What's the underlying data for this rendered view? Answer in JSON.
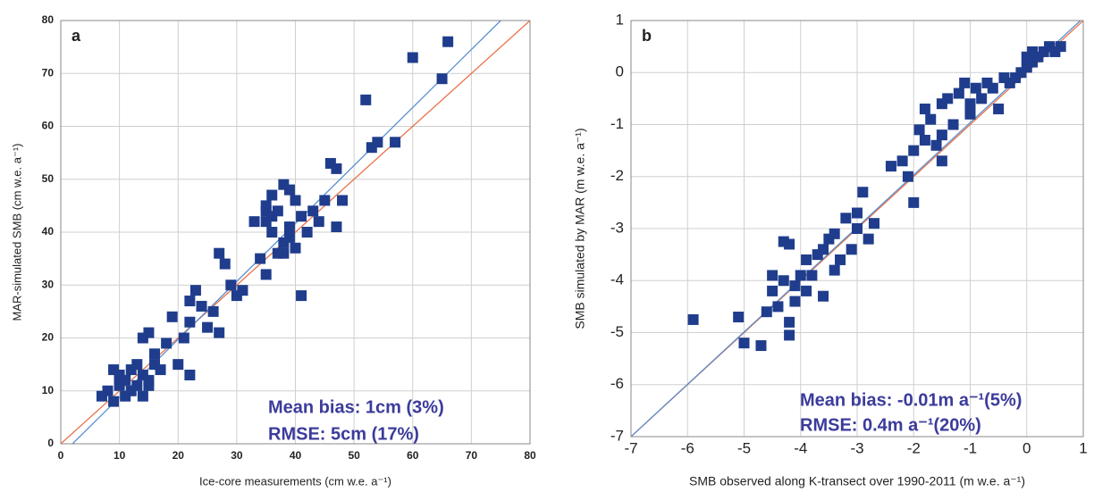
{
  "chart_data": [
    {
      "type": "scatter",
      "panel_label": "a",
      "x_label": "Ice-core measurements (cm w.e. a⁻¹)",
      "y_label": "MAR-simulated SMB (cm w.e. a⁻¹)",
      "annotations": [
        "Mean bias: 1cm (3%)",
        "RMSE: 5cm (17%)"
      ],
      "xlim": [
        0,
        80
      ],
      "ylim": [
        0,
        80
      ],
      "xticks": [
        0,
        10,
        20,
        30,
        40,
        50,
        60,
        70,
        80
      ],
      "yticks": [
        0,
        10,
        20,
        30,
        40,
        50,
        60,
        70,
        80
      ],
      "grid": true,
      "color": "#1f3d8c",
      "x": [
        7,
        8,
        9,
        9,
        10,
        10,
        11,
        11,
        12,
        12,
        13,
        13,
        14,
        14,
        15,
        15,
        16,
        16,
        17,
        18,
        19,
        20,
        21,
        22,
        22,
        23,
        24,
        25,
        26,
        27,
        28,
        29,
        30,
        31,
        33,
        34,
        35,
        35,
        35,
        36,
        36,
        37,
        37,
        38,
        38,
        39,
        39,
        40,
        40,
        41,
        41,
        42,
        43,
        44,
        45,
        46,
        47,
        48,
        35,
        36,
        38,
        39,
        47,
        52,
        53,
        54,
        57,
        60,
        65,
        66,
        14,
        15,
        10,
        22,
        27
      ],
      "y": [
        9,
        10,
        8,
        14,
        11,
        13,
        9,
        12,
        10,
        14,
        11,
        15,
        13,
        20,
        12,
        21,
        15,
        17,
        14,
        19,
        24,
        15,
        20,
        23,
        13,
        29,
        26,
        22,
        25,
        36,
        34,
        30,
        28,
        29,
        42,
        35,
        45,
        42,
        32,
        47,
        40,
        44,
        36,
        49,
        38,
        48,
        41,
        46,
        37,
        43,
        28,
        40,
        44,
        42,
        46,
        53,
        52,
        46,
        44,
        43,
        36,
        39,
        41,
        65,
        56,
        57,
        57,
        73,
        69,
        76,
        9,
        11,
        12,
        27,
        21
      ],
      "lines": [
        {
          "color": "#e8734a",
          "x": [
            0,
            80
          ],
          "y": [
            0,
            80
          ]
        },
        {
          "color": "#5b8fd0",
          "x": [
            2,
            75
          ],
          "y": [
            0,
            80
          ]
        }
      ]
    },
    {
      "type": "scatter",
      "panel_label": "b",
      "x_label": "SMB observed along K-transect over 1990-2011 (m w.e. a⁻¹)",
      "y_label": "SMB simulated by MAR (m w.e. a⁻¹)",
      "annotations": [
        "Mean bias: -0.01m a⁻¹(5%)",
        "RMSE: 0.4m a⁻¹(20%)"
      ],
      "xlim": [
        -7,
        1
      ],
      "ylim": [
        -7,
        1
      ],
      "xticks": [
        -7,
        -6,
        -5,
        -4,
        -3,
        -2,
        -1,
        0,
        1
      ],
      "yticks": [
        -7,
        -6,
        -5,
        -4,
        -3,
        -2,
        -1,
        0,
        1
      ],
      "grid": true,
      "color": "#1f3d8c",
      "x": [
        -5.9,
        -5.1,
        -5.0,
        -4.7,
        -4.6,
        -4.5,
        -4.5,
        -4.4,
        -4.3,
        -4.3,
        -4.2,
        -4.2,
        -4.1,
        -4.1,
        -4.0,
        -3.9,
        -3.9,
        -3.8,
        -3.7,
        -3.6,
        -3.6,
        -3.5,
        -3.4,
        -3.4,
        -3.3,
        -3.2,
        -3.1,
        -3.0,
        -3.0,
        -2.9,
        -2.8,
        -2.7,
        -2.4,
        -2.2,
        -2.1,
        -2.0,
        -2.0,
        -1.9,
        -1.8,
        -1.8,
        -1.7,
        -1.6,
        -1.5,
        -1.5,
        -1.4,
        -1.3,
        -1.2,
        -1.1,
        -1.0,
        -1.0,
        -0.9,
        -0.8,
        -0.7,
        -0.6,
        -0.5,
        -0.4,
        -0.3,
        -0.2,
        -0.1,
        0.0,
        0.0,
        0.1,
        0.1,
        0.2,
        0.3,
        0.4,
        0.5,
        0.6,
        -4.2,
        -1.5
      ],
      "y": [
        -4.75,
        -4.7,
        -5.2,
        -5.25,
        -4.6,
        -3.9,
        -4.2,
        -4.5,
        -3.25,
        -4.0,
        -4.8,
        -5.05,
        -4.1,
        -4.4,
        -3.9,
        -4.2,
        -3.6,
        -3.9,
        -3.5,
        -4.3,
        -3.4,
        -3.2,
        -3.1,
        -3.8,
        -3.6,
        -2.8,
        -3.4,
        -3.0,
        -2.7,
        -2.3,
        -3.2,
        -2.9,
        -1.8,
        -1.7,
        -2.0,
        -2.5,
        -1.5,
        -1.1,
        -0.7,
        -1.3,
        -0.9,
        -1.4,
        -0.6,
        -1.2,
        -0.5,
        -1.0,
        -0.4,
        -0.2,
        -0.6,
        -0.8,
        -0.3,
        -0.5,
        -0.2,
        -0.3,
        -0.7,
        -0.1,
        -0.2,
        -0.1,
        0.0,
        0.1,
        0.3,
        0.2,
        0.4,
        0.3,
        0.4,
        0.5,
        0.4,
        0.5,
        -3.3,
        -1.7
      ],
      "lines": [
        {
          "color": "#e8734a",
          "x": [
            -7,
            1
          ],
          "y": [
            -7,
            1
          ]
        },
        {
          "color": "#5b8fd0",
          "x": [
            -7,
            0.95
          ],
          "y": [
            -7,
            1
          ]
        }
      ]
    }
  ]
}
